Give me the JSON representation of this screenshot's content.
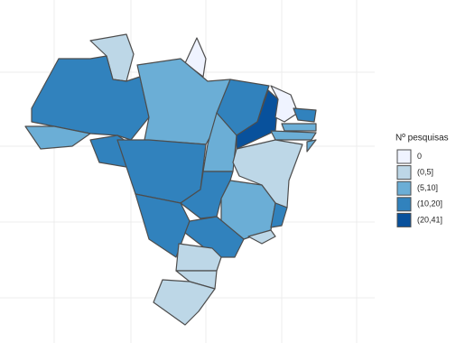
{
  "legend": {
    "title": "Nº pesquisas",
    "items": [
      {
        "label": "0",
        "color": "#eff3ff"
      },
      {
        "label": "(0,5]",
        "color": "#bdd7e7"
      },
      {
        "label": "(5,10]",
        "color": "#6baed6"
      },
      {
        "label": "(10,20]",
        "color": "#3182bd"
      },
      {
        "label": "(20,41]",
        "color": "#08519c"
      }
    ]
  }
}
